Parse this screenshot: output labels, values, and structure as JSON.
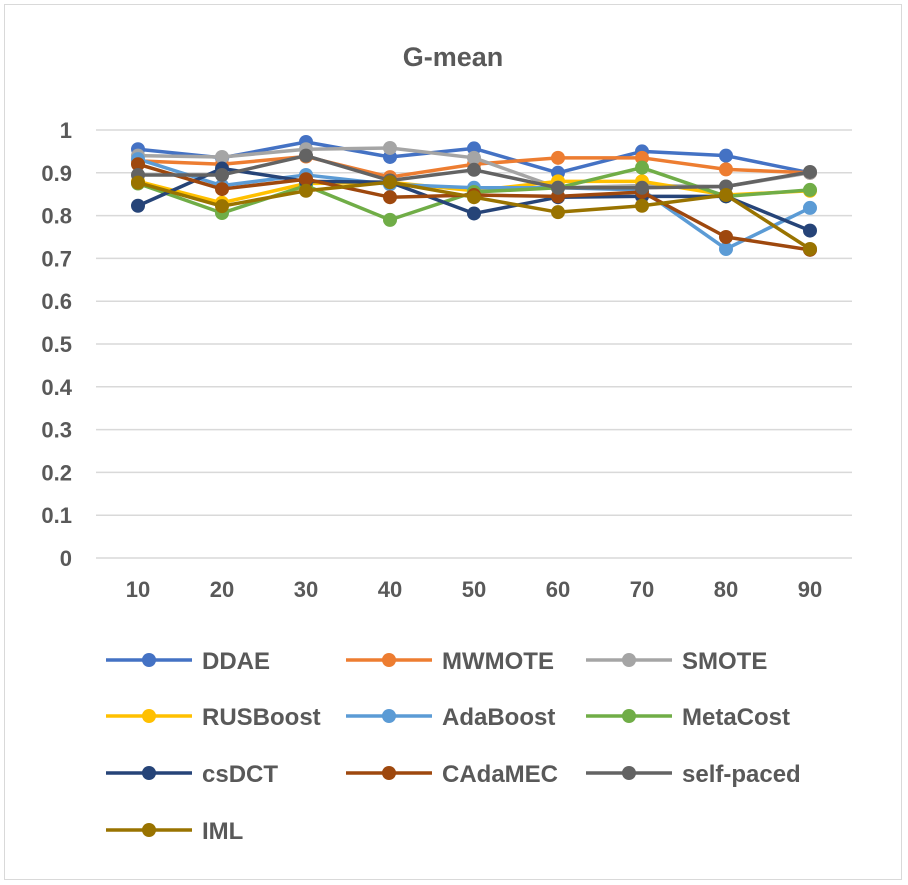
{
  "chart_data": {
    "type": "line",
    "title": "G-mean",
    "xlabel": "",
    "ylabel": "",
    "x": [
      "10",
      "20",
      "30",
      "40",
      "50",
      "60",
      "70",
      "80",
      "90"
    ],
    "ylim": [
      0,
      1
    ],
    "yticks": [
      "0",
      "0.1",
      "0.2",
      "0.3",
      "0.4",
      "0.5",
      "0.6",
      "0.7",
      "0.8",
      "0.9",
      "1"
    ],
    "grid": true,
    "legend_position": "bottom",
    "series": [
      {
        "name": "DDAE",
        "color": "#4472C4",
        "values": [
          0.955,
          0.935,
          0.972,
          0.937,
          0.957,
          0.9,
          0.95,
          0.94,
          0.9
        ]
      },
      {
        "name": "MWMOTE",
        "color": "#ED7D31",
        "values": [
          0.928,
          0.92,
          0.938,
          0.89,
          0.92,
          0.935,
          0.935,
          0.908,
          0.9
        ]
      },
      {
        "name": "SMOTE",
        "color": "#A5A5A5",
        "values": [
          0.94,
          0.937,
          0.955,
          0.958,
          0.935,
          0.865,
          0.87,
          0.868,
          0.9
        ]
      },
      {
        "name": "RUSBoost",
        "color": "#FFC000",
        "values": [
          0.88,
          0.83,
          0.875,
          0.878,
          0.858,
          0.88,
          0.88,
          0.848,
          0.858
        ]
      },
      {
        "name": "AdaBoost",
        "color": "#5B9BD5",
        "values": [
          0.932,
          0.87,
          0.895,
          0.873,
          0.865,
          0.865,
          0.86,
          0.722,
          0.818
        ]
      },
      {
        "name": "MetaCost",
        "color": "#70AD47",
        "values": [
          0.875,
          0.806,
          0.87,
          0.79,
          0.855,
          0.865,
          0.912,
          0.845,
          0.86
        ]
      },
      {
        "name": "csDCT",
        "color": "#264478",
        "values": [
          0.823,
          0.91,
          0.88,
          0.878,
          0.805,
          0.843,
          0.845,
          0.845,
          0.765
        ]
      },
      {
        "name": "CAdaMEC",
        "color": "#9E480E",
        "values": [
          0.92,
          0.862,
          0.885,
          0.843,
          0.848,
          0.845,
          0.855,
          0.75,
          0.72
        ]
      },
      {
        "name": "self-paced",
        "color": "#636363",
        "values": [
          0.895,
          0.895,
          0.94,
          0.882,
          0.907,
          0.865,
          0.865,
          0.868,
          0.902
        ]
      },
      {
        "name": "IML",
        "color": "#997300",
        "values": [
          0.877,
          0.822,
          0.858,
          0.878,
          0.843,
          0.808,
          0.823,
          0.848,
          0.722
        ]
      }
    ]
  }
}
